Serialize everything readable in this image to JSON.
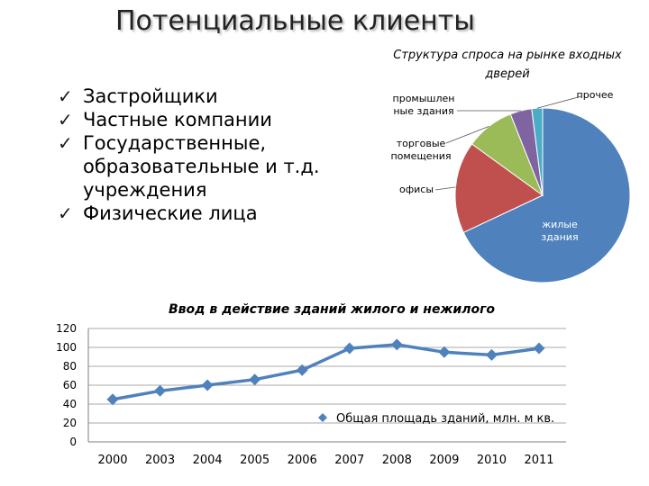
{
  "slide": {
    "title": "Потенциальные клиенты",
    "bullet_mark": "✓",
    "bullets": [
      [
        "Застройщики"
      ],
      [
        "Частные компании"
      ],
      [
        "Государственные,",
        "образовательные и т.д.",
        "учреждения"
      ],
      [
        "Физические лица"
      ]
    ]
  },
  "chart_data": [
    {
      "type": "pie",
      "title": [
        "Структура спроса на рынке входных",
        "дверей"
      ],
      "labels": [
        [
          "жилые",
          "здания"
        ],
        [
          "офисы"
        ],
        [
          "торговые",
          "помещения"
        ],
        [
          "промышлен",
          "ные здания"
        ],
        [
          "прочее"
        ]
      ],
      "values": [
        68,
        17,
        9,
        4,
        2
      ],
      "colors": [
        "#4f81bd",
        "#c0504d",
        "#9bbb59",
        "#8064a2",
        "#4bacc6"
      ]
    },
    {
      "type": "line",
      "title": "Ввод в действие зданий жилого и нежилого",
      "categories": [
        "2000",
        "2003",
        "2004",
        "2005",
        "2006",
        "2007",
        "2008",
        "2009",
        "2010",
        "2011"
      ],
      "series": [
        {
          "name": "Общая площадь зданий, млн. м кв.",
          "values": [
            45,
            54,
            60,
            66,
            76,
            99,
            103,
            95,
            92,
            99
          ],
          "color": "#4f81bd"
        }
      ],
      "ylim": [
        0,
        120
      ],
      "yticks": [
        "0",
        "20",
        "40",
        "60",
        "80",
        "100",
        "120"
      ],
      "grid": true,
      "legend_position": "inside-lower-right"
    }
  ]
}
